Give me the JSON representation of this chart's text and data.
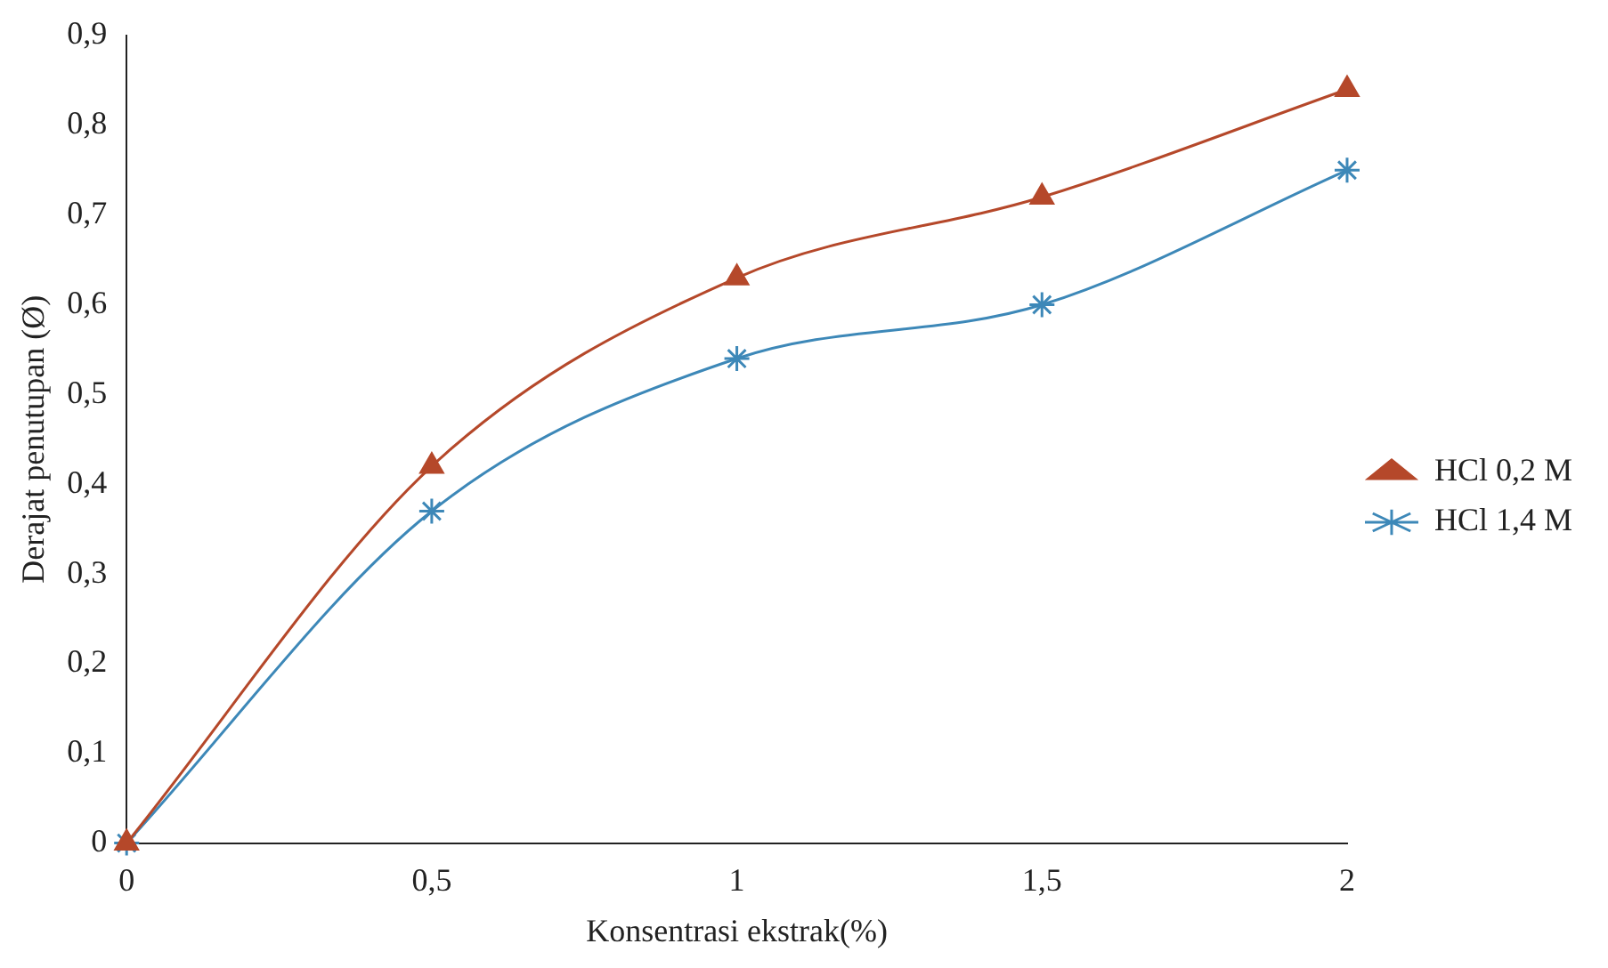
{
  "chart_data": {
    "type": "line",
    "xlabel": "Konsentrasi ekstrak(%)",
    "ylabel": "Derajat penutupan (Ø)",
    "x": [
      0,
      0.5,
      1,
      1.5,
      2
    ],
    "series": [
      {
        "name": "HCl 0,2 M",
        "color": "#b5482a",
        "marker": "triangle",
        "values": [
          0,
          0.42,
          0.63,
          0.72,
          0.84
        ]
      },
      {
        "name": "HCl 1,4 M",
        "color": "#3d88b8",
        "marker": "cross",
        "values": [
          0,
          0.37,
          0.54,
          0.6,
          0.75
        ]
      }
    ],
    "xlim": [
      0,
      2
    ],
    "xticks": [
      0,
      {
        "value": 0.5,
        "label": "0,5"
      },
      1,
      {
        "value": 1.5,
        "label": "1,5"
      },
      2
    ],
    "ylim": [
      0,
      0.9
    ],
    "yticks": [
      0,
      {
        "value": 0.1,
        "label": "0,1"
      },
      {
        "value": 0.2,
        "label": "0,2"
      },
      {
        "value": 0.3,
        "label": "0,3"
      },
      {
        "value": 0.4,
        "label": "0,4"
      },
      {
        "value": 0.5,
        "label": "0,5"
      },
      {
        "value": 0.6,
        "label": "0,6"
      },
      {
        "value": 0.7,
        "label": "0,7"
      },
      {
        "value": 0.8,
        "label": "0,8"
      },
      {
        "value": 0.9,
        "label": "0,9"
      }
    ],
    "grid": false,
    "legend": "right",
    "line_style": "solid"
  }
}
